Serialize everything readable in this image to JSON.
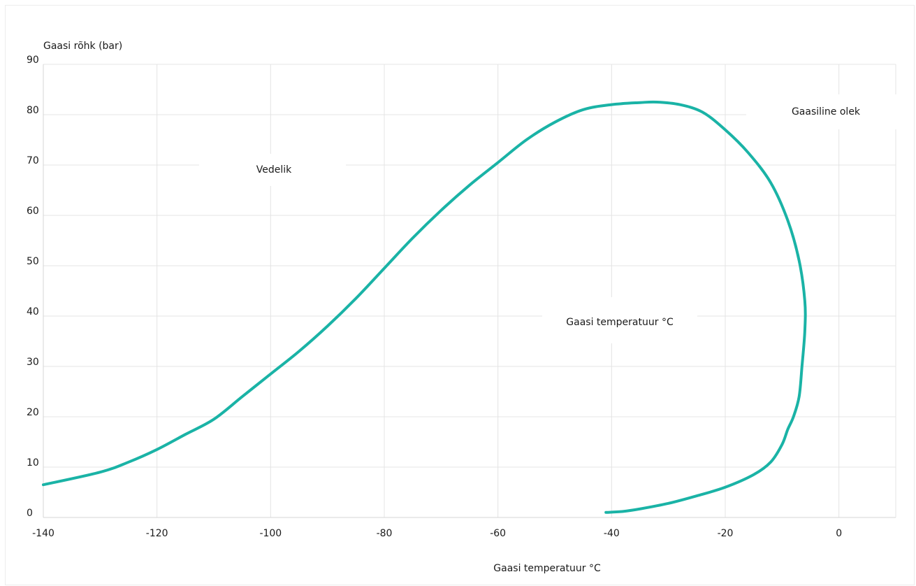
{
  "chart_data": {
    "type": "line",
    "title": "",
    "ylabel": "Gaasi rõhk  (bar)",
    "xlabel": "Gaasi temperatuur °C",
    "xlim": [
      -140,
      10
    ],
    "ylim": [
      0,
      90
    ],
    "x_ticks": [
      -140,
      -120,
      -100,
      -80,
      -60,
      -40,
      -20,
      0
    ],
    "y_ticks": [
      0,
      10,
      20,
      30,
      40,
      50,
      60,
      70,
      80,
      90
    ],
    "x_tick_labels": [
      "-140",
      "-120",
      "-100",
      "-80",
      "-60",
      "-40",
      "-20",
      "0"
    ],
    "y_tick_labels": [
      "0",
      "10",
      "20",
      "30",
      "40",
      "50",
      "60",
      "70",
      "80",
      "90"
    ],
    "grid": true,
    "series": [
      {
        "color": "#1ab3a6",
        "x": [
          -140,
          -130,
          -125,
          -120,
          -115,
          -110,
          -105,
          -100,
          -95,
          -90,
          -85,
          -80,
          -75,
          -70,
          -65,
          -60,
          -55,
          -50,
          -45,
          -40,
          -35,
          -32,
          -28,
          -24,
          -20,
          -16,
          -12,
          -9,
          -7,
          -6,
          -6,
          -6.5,
          -7,
          -8,
          -9,
          -10,
          -12,
          -15,
          -20,
          -25,
          -30,
          -35,
          -38,
          -41
        ],
        "y": [
          6.5,
          9,
          11,
          13.5,
          16.5,
          19.5,
          24,
          28.5,
          33,
          38,
          43.5,
          49.5,
          55.5,
          61,
          66,
          70.5,
          75,
          78.5,
          81,
          82,
          82.4,
          82.5,
          82,
          80.5,
          77,
          72.5,
          66.5,
          59,
          51,
          43,
          37,
          30,
          24,
          20,
          17.5,
          14.5,
          11,
          8.5,
          6,
          4.3,
          2.8,
          1.7,
          1.2,
          1
        ]
      }
    ],
    "annotations": [
      "Vedelik",
      "Gaasiline olek",
      "Gaasi temperatuur °C"
    ]
  }
}
